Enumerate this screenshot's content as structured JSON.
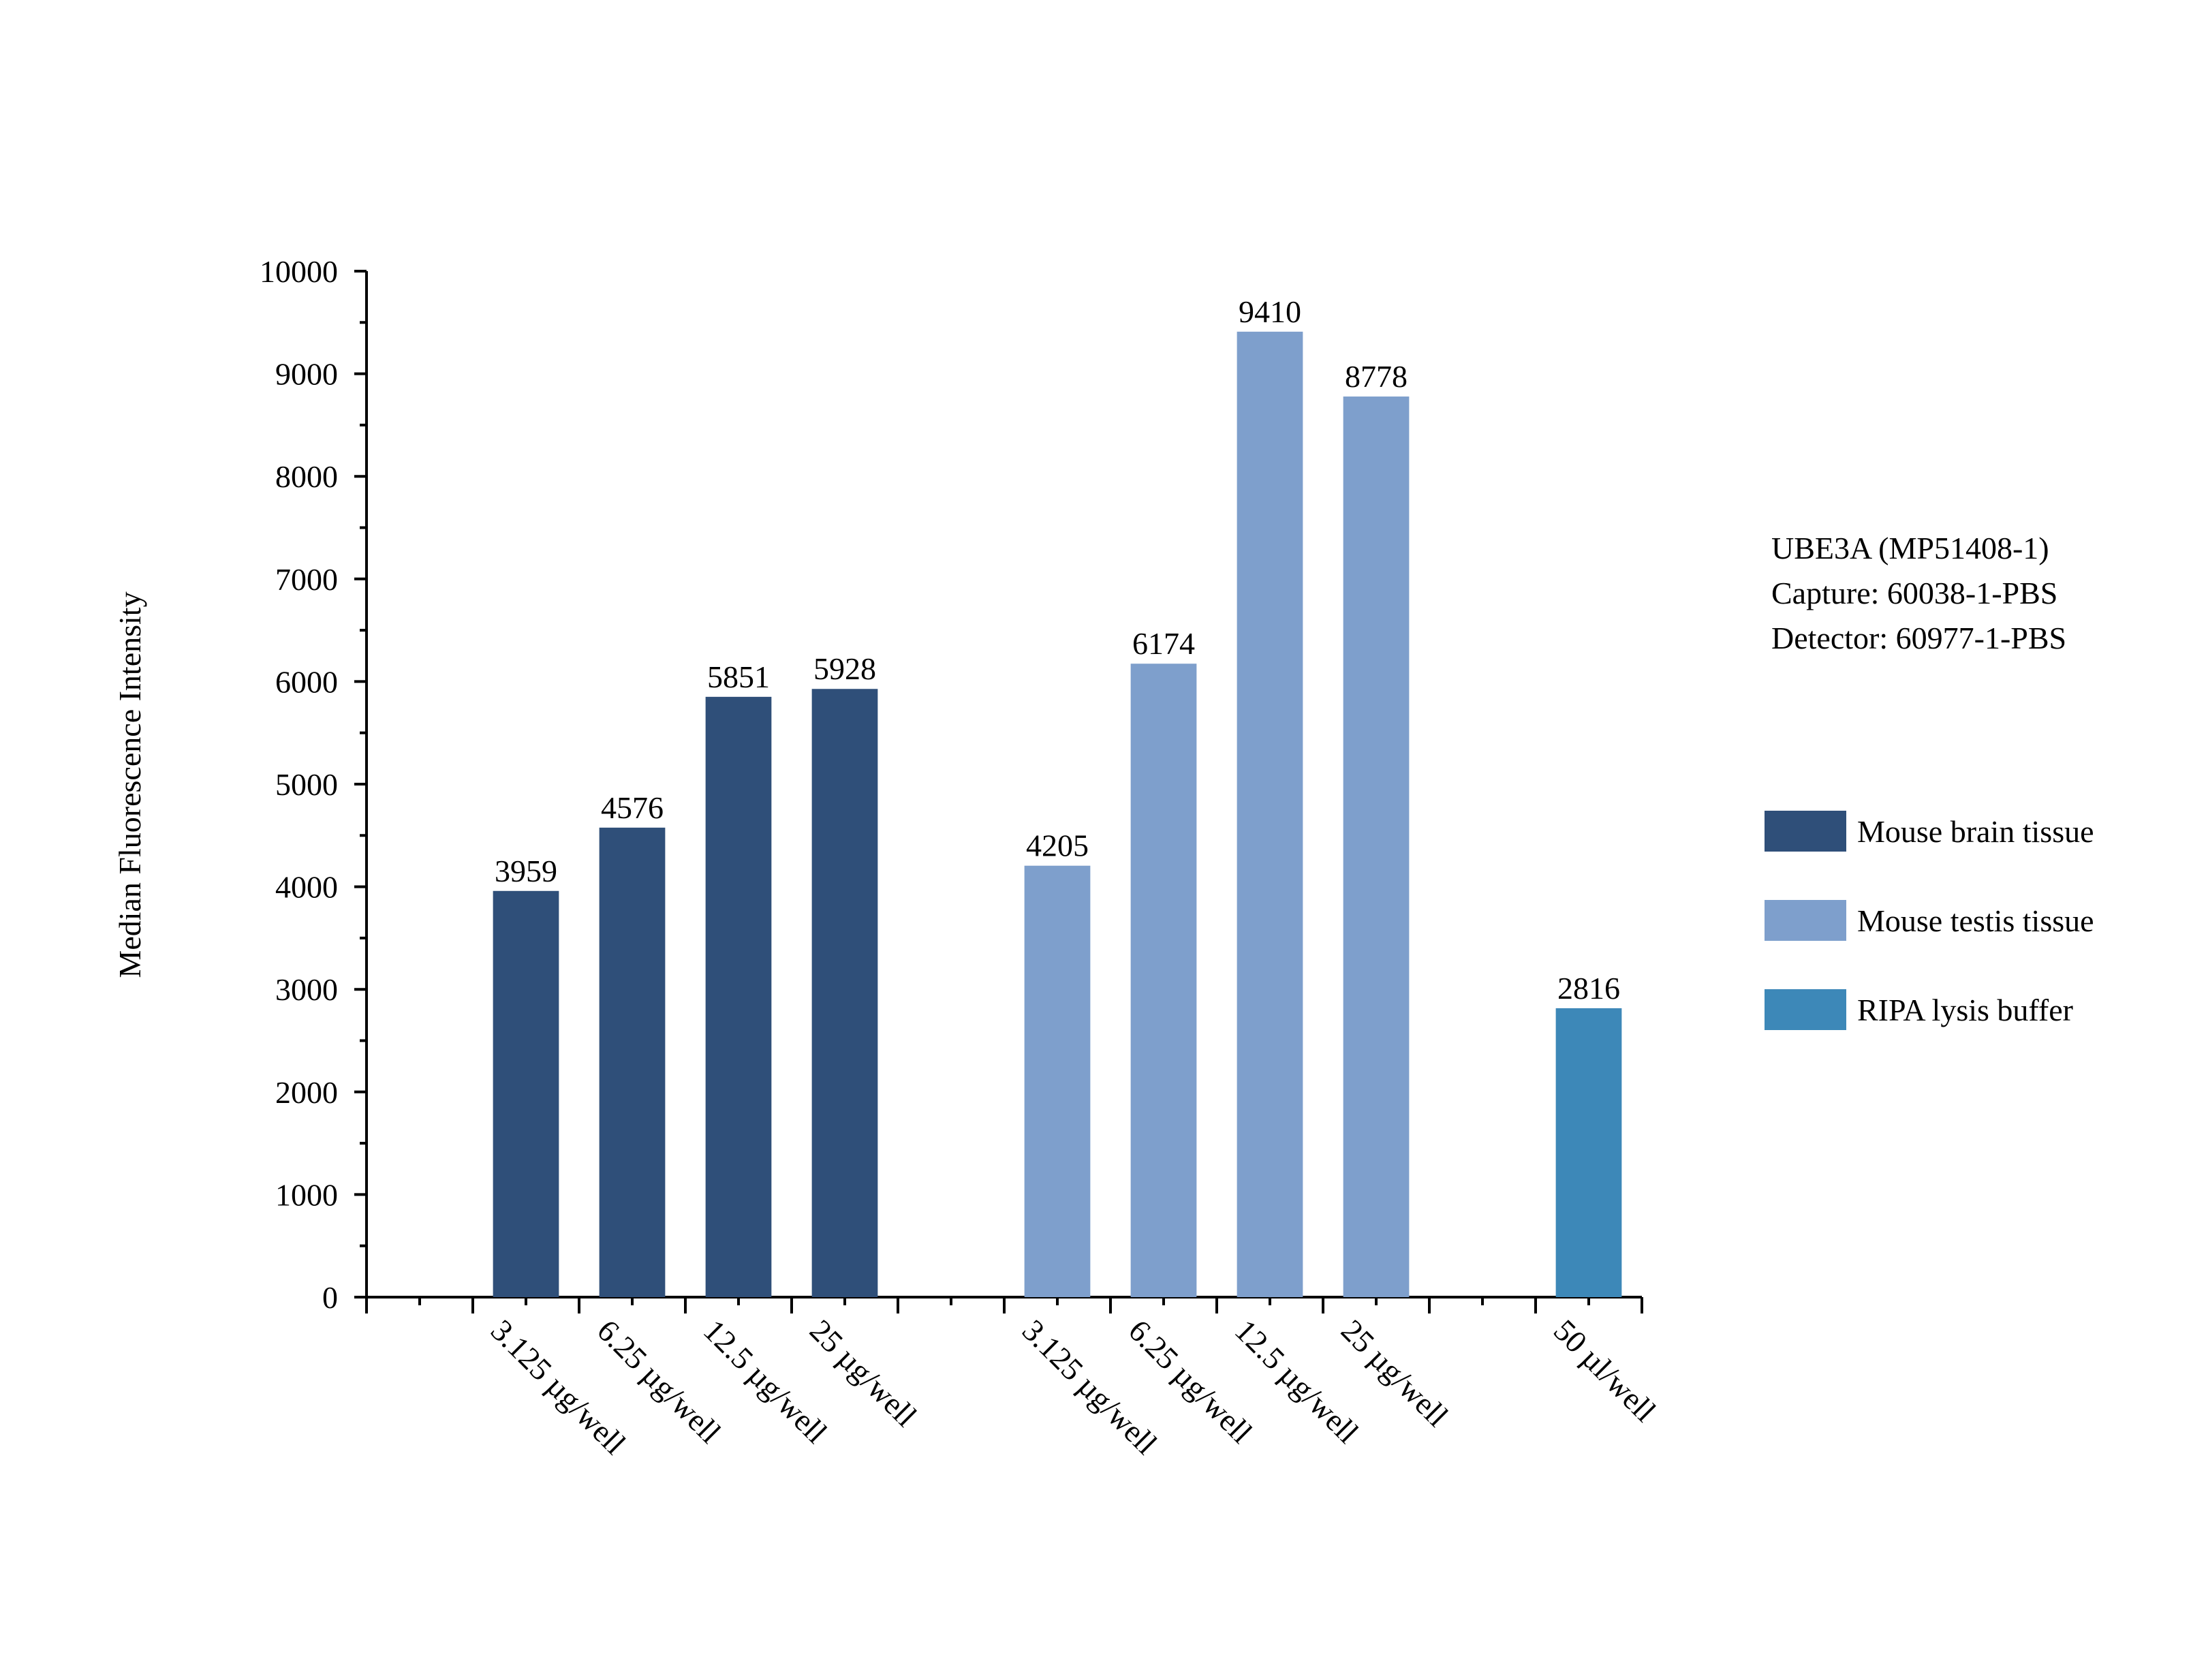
{
  "chart_data": {
    "type": "bar",
    "ylabel": "Median Fluorescence Intensity",
    "ylim": [
      0,
      10000
    ],
    "yticks": [
      0,
      1000,
      2000,
      3000,
      4000,
      5000,
      6000,
      7000,
      8000,
      9000,
      10000
    ],
    "yticklabels": [
      "0",
      "1000",
      "2000",
      "3000",
      "4000",
      "5000",
      "6000",
      "7000",
      "8000",
      "9000",
      "10000"
    ],
    "slots": 12,
    "bars": [
      {
        "slot": 1,
        "label": "3.125 µg/well",
        "value": 3959,
        "value_label": "3959",
        "series": 0
      },
      {
        "slot": 2,
        "label": "6.25 µg/well",
        "value": 4576,
        "value_label": "4576",
        "series": 0
      },
      {
        "slot": 3,
        "label": "12.5 µg/well",
        "value": 5851,
        "value_label": "5851",
        "series": 0
      },
      {
        "slot": 4,
        "label": "25 µg/well",
        "value": 5928,
        "value_label": "5928",
        "series": 0
      },
      {
        "slot": 6,
        "label": "3.125 µg/well",
        "value": 4205,
        "value_label": "4205",
        "series": 1
      },
      {
        "slot": 7,
        "label": "6.25 µg/well",
        "value": 6174,
        "value_label": "6174",
        "series": 1
      },
      {
        "slot": 8,
        "label": "12.5 µg/well",
        "value": 9410,
        "value_label": "9410",
        "series": 1
      },
      {
        "slot": 9,
        "label": "25 µg/well",
        "value": 8778,
        "value_label": "8778",
        "series": 1
      },
      {
        "slot": 11,
        "label": "50 µl/well",
        "value": 2816,
        "value_label": "2816",
        "series": 2
      }
    ],
    "series": [
      {
        "name": "Mouse brain tissue",
        "color": "#2f4f79"
      },
      {
        "name": "Mouse testis tissue",
        "color": "#7e9fcc"
      },
      {
        "name": "RIPA lysis buffer",
        "color": "#3d88b8"
      }
    ],
    "annotation": [
      "UBE3A (MP51408-1)",
      "Capture: 60038-1-PBS",
      "Detector: 60977-1-PBS"
    ],
    "legend_position": "right",
    "grid": false
  }
}
